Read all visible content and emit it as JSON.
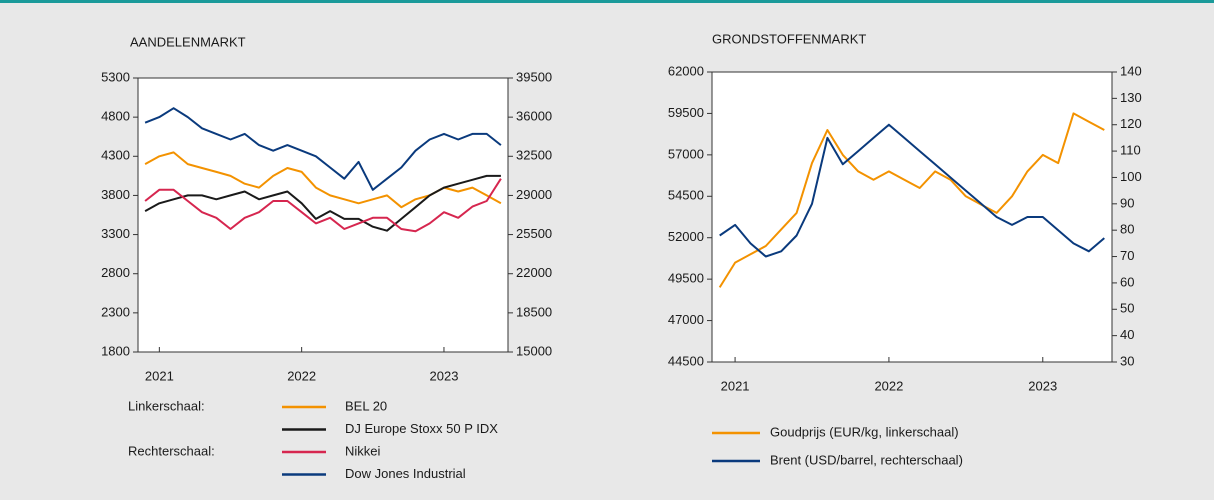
{
  "chart_data": [
    {
      "type": "line",
      "title": "AANDELENMARKT",
      "x": [
        2020.9,
        2021.0,
        2021.1,
        2021.2,
        2021.3,
        2021.4,
        2021.5,
        2021.6,
        2021.7,
        2021.8,
        2021.9,
        2022.0,
        2022.1,
        2022.2,
        2022.3,
        2022.4,
        2022.5,
        2022.6,
        2022.7,
        2022.8,
        2022.9,
        2023.0,
        2023.1,
        2023.2,
        2023.3,
        2023.4
      ],
      "xlim": [
        2020.85,
        2023.45
      ],
      "xticks": [
        2021,
        2022,
        2023
      ],
      "ylim": [
        1800,
        5300
      ],
      "yticks": [
        1800,
        2300,
        2800,
        3300,
        3800,
        4300,
        4800,
        5300
      ],
      "y2lim": [
        15000,
        39500
      ],
      "y2ticks": [
        15000,
        18500,
        22000,
        25500,
        29000,
        32500,
        36000,
        39500
      ],
      "legend_group_labels": [
        "Linkerschaal:",
        "Rechterschaal:"
      ],
      "series": [
        {
          "name": "BEL 20",
          "color": "#f39200",
          "axis": "y",
          "values": [
            4200,
            4300,
            4350,
            4200,
            4150,
            4100,
            4050,
            3950,
            3900,
            4050,
            4150,
            4100,
            3900,
            3800,
            3750,
            3700,
            3750,
            3800,
            3650,
            3750,
            3800,
            3900,
            3850,
            3900,
            3800,
            3700
          ]
        },
        {
          "name": "DJ Europe Stoxx 50 P IDX",
          "color": "#1a1a1a",
          "axis": "y",
          "values": [
            3600,
            3700,
            3750,
            3800,
            3800,
            3750,
            3800,
            3850,
            3750,
            3800,
            3850,
            3700,
            3500,
            3600,
            3500,
            3500,
            3400,
            3350,
            3500,
            3650,
            3800,
            3900,
            3950,
            4000,
            4050,
            4050
          ]
        },
        {
          "name": "Nikkei",
          "color": "#d6264f",
          "axis": "y2",
          "values": [
            28500,
            29500,
            29500,
            28500,
            27500,
            27000,
            26000,
            27000,
            27500,
            28500,
            28500,
            27500,
            26500,
            27000,
            26000,
            26500,
            27000,
            27000,
            26000,
            25800,
            26500,
            27500,
            27000,
            28000,
            28500,
            30500
          ]
        },
        {
          "name": "Dow Jones Industrial",
          "color": "#0a3a7d",
          "axis": "y2",
          "values": [
            35500,
            36000,
            36800,
            36000,
            35000,
            34500,
            34000,
            34500,
            33500,
            33000,
            33500,
            33000,
            32500,
            31500,
            30500,
            32000,
            29500,
            30500,
            31500,
            33000,
            34000,
            34500,
            34000,
            34500,
            34500,
            33500
          ]
        }
      ]
    },
    {
      "type": "line",
      "title": "GRONDSTOFFENMARKT",
      "x": [
        2020.9,
        2021.0,
        2021.1,
        2021.2,
        2021.3,
        2021.4,
        2021.5,
        2021.6,
        2021.7,
        2021.8,
        2021.9,
        2022.0,
        2022.1,
        2022.2,
        2022.3,
        2022.4,
        2022.5,
        2022.6,
        2022.7,
        2022.8,
        2022.9,
        2023.0,
        2023.1,
        2023.2,
        2023.3,
        2023.4
      ],
      "xlim": [
        2020.85,
        2023.45
      ],
      "xticks": [
        2021,
        2022,
        2023
      ],
      "ylim": [
        44500,
        62000
      ],
      "yticks": [
        44500,
        47000,
        49500,
        52000,
        54500,
        57000,
        59500,
        62000
      ],
      "y2lim": [
        30,
        140
      ],
      "y2ticks": [
        30,
        40,
        50,
        60,
        70,
        80,
        90,
        100,
        110,
        120,
        130,
        140
      ],
      "series": [
        {
          "name": "Goudprijs (EUR/kg, linkerschaal)",
          "color": "#f39200",
          "axis": "y",
          "values": [
            49000,
            50500,
            51000,
            51500,
            52500,
            53500,
            56500,
            58500,
            57000,
            56000,
            55500,
            56000,
            55500,
            55000,
            56000,
            55500,
            54500,
            54000,
            53500,
            54500,
            56000,
            57000,
            56500,
            59500,
            59000,
            58500
          ]
        },
        {
          "name": "Brent (USD/barrel, rechterschaal)",
          "color": "#0a3a7d",
          "axis": "y2",
          "values": [
            78,
            82,
            75,
            70,
            72,
            78,
            90,
            115,
            105,
            110,
            115,
            120,
            115,
            110,
            105,
            100,
            95,
            90,
            85,
            82,
            85,
            85,
            80,
            75,
            72,
            77
          ]
        }
      ]
    }
  ]
}
